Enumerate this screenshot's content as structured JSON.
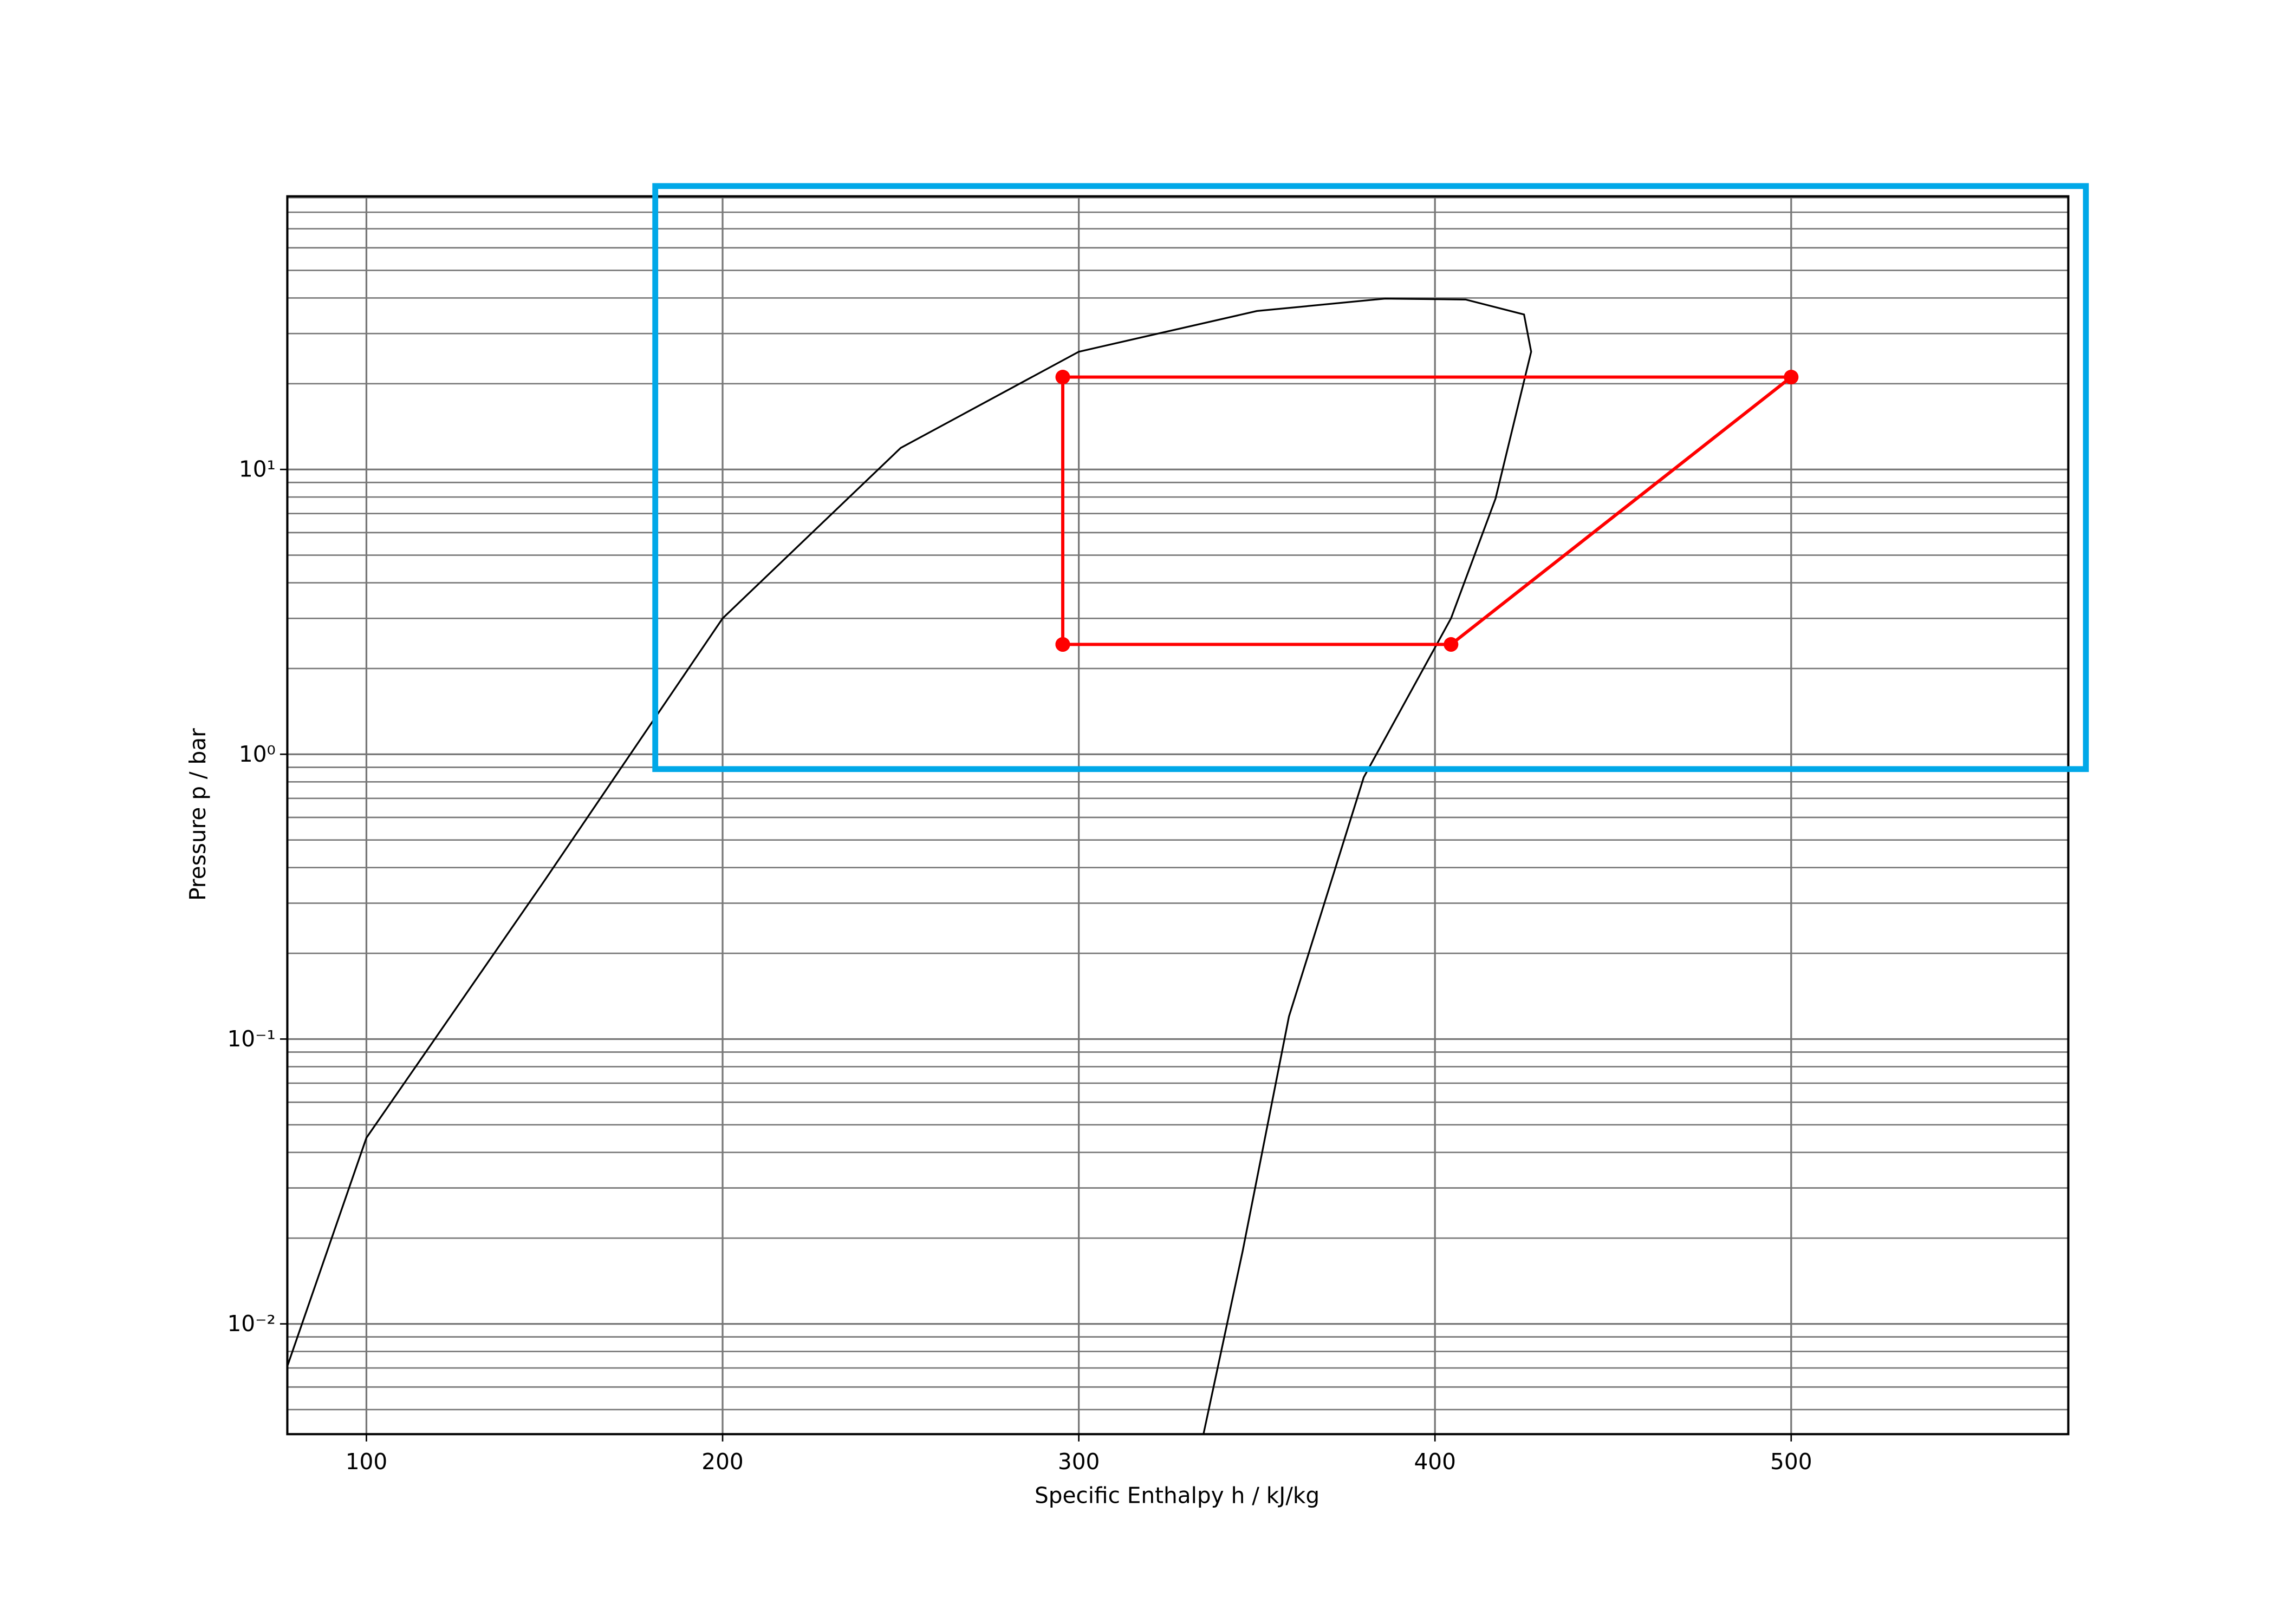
{
  "chart_data": {
    "type": "line",
    "xlabel": "Specific Enthalpy h / kJ/kg",
    "ylabel": "Pressure p / bar",
    "xlim": [
      77.8,
      577.8
    ],
    "xticks": [
      100,
      200,
      300,
      400,
      500
    ],
    "ylim": [
      0.0041,
      91
    ],
    "log_y": true,
    "grid": true,
    "yticks": [
      {
        "value": 0.01,
        "label": "10⁻²"
      },
      {
        "value": 0.1,
        "label": "10⁻¹"
      },
      {
        "value": 1,
        "label": "10⁰"
      },
      {
        "value": 10,
        "label": "10¹"
      }
    ],
    "yminorticks": [
      0.005,
      0.006,
      0.007,
      0.008,
      0.009,
      0.02,
      0.03,
      0.04,
      0.05,
      0.06,
      0.07,
      0.08,
      0.09,
      0.2,
      0.3,
      0.4,
      0.5,
      0.6,
      0.7,
      0.8,
      0.9,
      2,
      3,
      4,
      5,
      6,
      7,
      8,
      9,
      20,
      30,
      40,
      50,
      60,
      70,
      80,
      90
    ],
    "series": [
      {
        "color": "#000000",
        "markers": false,
        "x": [
          77.8,
          100,
          150,
          200,
          250,
          300,
          350,
          386,
          408.6,
          425,
          427,
          417,
          404.5,
          380,
          359,
          346,
          335
        ],
        "values": [
          0.0071,
          0.045,
          0.36,
          3.0,
          11.9,
          25.9,
          36,
          39.8,
          39.5,
          35,
          25.9,
          7.9,
          3.0,
          0.83,
          0.12,
          0.018,
          0.0041
        ]
      },
      {
        "color": "#ff0000",
        "markers": true,
        "x": [
          295.5,
          404.5,
          500,
          295.5,
          295.5
        ],
        "values": [
          2.43,
          2.43,
          21.1,
          21.1,
          2.43
        ]
      }
    ]
  }
}
